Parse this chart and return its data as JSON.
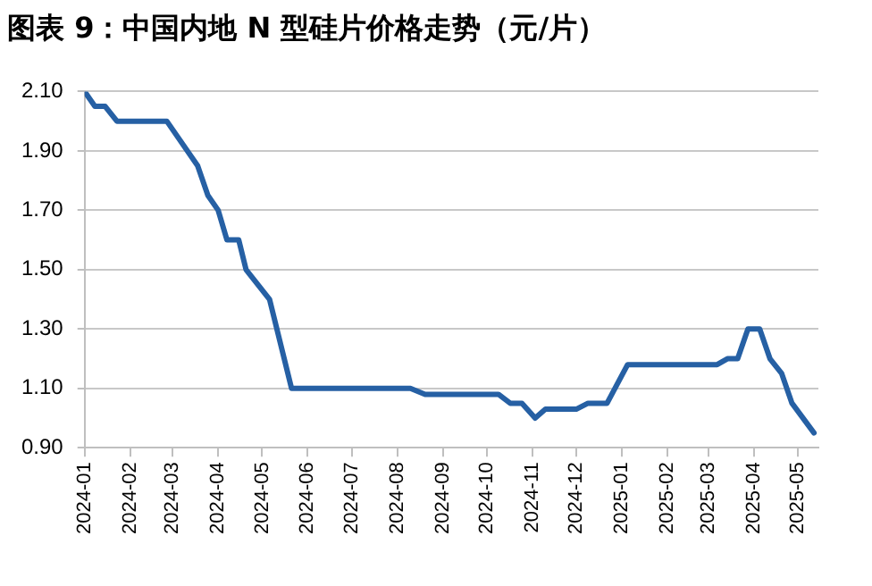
{
  "chart_data": {
    "type": "line",
    "title": "图表 9：中国内地 N 型硅片价格走势（元/片）",
    "x": [
      "2024-01-01",
      "2024-01-08",
      "2024-01-15",
      "2024-01-23",
      "2024-02-26",
      "2024-03-18",
      "2024-03-25",
      "2024-04-01",
      "2024-04-07",
      "2024-04-15",
      "2024-04-20",
      "2024-05-06",
      "2024-05-21",
      "2024-08-10",
      "2024-08-20",
      "2024-10-09",
      "2024-10-17",
      "2024-10-25",
      "2024-11-03",
      "2024-11-10",
      "2024-12-01",
      "2024-12-09",
      "2024-12-22",
      "2025-01-05",
      "2025-03-07",
      "2025-03-14",
      "2025-03-21",
      "2025-03-28",
      "2025-04-05",
      "2025-04-12",
      "2025-04-20",
      "2025-04-27",
      "2025-05-12"
    ],
    "series": [
      {
        "color": "#2660a4",
        "values": [
          2.1,
          2.05,
          2.05,
          2.0,
          2.0,
          1.85,
          1.75,
          1.7,
          1.6,
          1.6,
          1.5,
          1.4,
          1.1,
          1.1,
          1.08,
          1.08,
          1.05,
          1.05,
          1.0,
          1.03,
          1.03,
          1.05,
          1.05,
          1.18,
          1.18,
          1.2,
          1.2,
          1.3,
          1.3,
          1.2,
          1.15,
          1.05,
          0.95
        ]
      }
    ],
    "xlim": [
      "2024-01-01",
      "2025-05-15"
    ],
    "xticks": [
      "2024-01",
      "2024-02",
      "2024-03",
      "2024-04",
      "2024-05",
      "2024-06",
      "2024-07",
      "2024-08",
      "2024-09",
      "2024-10",
      "2024-11",
      "2024-12",
      "2025-01",
      "2025-02",
      "2025-03",
      "2025-04",
      "2025-05"
    ],
    "ylim": [
      0.9,
      2.1
    ],
    "yticks": [
      {
        "value": 0.9,
        "label": "0.90"
      },
      {
        "value": 1.1,
        "label": "1.10"
      },
      {
        "value": 1.3,
        "label": "1.30"
      },
      {
        "value": 1.5,
        "label": "1.50"
      },
      {
        "value": 1.7,
        "label": "1.70"
      },
      {
        "value": 1.9,
        "label": "1.90"
      },
      {
        "value": 2.1,
        "label": "2.10"
      }
    ],
    "grid": "y",
    "legend": false,
    "marker": "none",
    "line_style": "solid"
  }
}
